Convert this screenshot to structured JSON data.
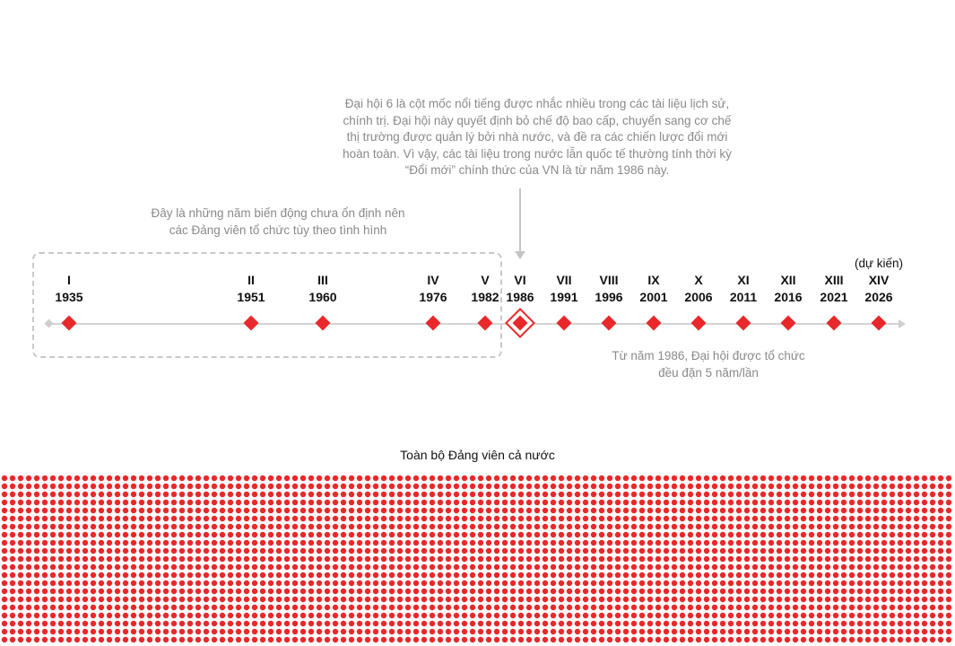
{
  "notes": {
    "top": "Đại hội 6 là cột mốc nổi tiếng được nhắc nhiều trong các tài liệu lịch sử,\nchính trị. Đại hội này quyết định bỏ chế độ bao cấp, chuyển sang cơ chế\nthị trường được quản lý bởi nhà nước, và đề ra các chiến lược đổi mới\nhoàn toàn. Vì vậy, các tài liệu trong nước lẫn quốc tế thường tính thời kỳ\n“Đổi mới” chính thức của VN là từ năm 1986 này.",
    "left": "Đây là những năm biến động chưa ổn định nên\ncác Đảng viên tổ chức tùy theo tình hình",
    "right": "Từ năm 1986, Đại hội được tổ chức\nđều đặn 5 năm/lần"
  },
  "planned_label": "(dự kiến)",
  "congresses": [
    {
      "roman": "I",
      "year": "1935"
    },
    {
      "roman": "II",
      "year": "1951"
    },
    {
      "roman": "III",
      "year": "1960"
    },
    {
      "roman": "IV",
      "year": "1976"
    },
    {
      "roman": "V",
      "year": "1982"
    },
    {
      "roman": "VI",
      "year": "1986",
      "highlight": true
    },
    {
      "roman": "VII",
      "year": "1991"
    },
    {
      "roman": "VIII",
      "year": "1996"
    },
    {
      "roman": "IX",
      "year": "2001"
    },
    {
      "roman": "X",
      "year": "2006"
    },
    {
      "roman": "XI",
      "year": "2011"
    },
    {
      "roman": "XII",
      "year": "2016"
    },
    {
      "roman": "XIII",
      "year": "2021"
    },
    {
      "roman": "XIV",
      "year": "2026",
      "planned": true
    }
  ],
  "dots_title": "Toàn bộ Đảng viên cả nước",
  "colors": {
    "accent": "#e8282a",
    "muted": "#8a8a8a",
    "axis": "#d3d3d3"
  }
}
